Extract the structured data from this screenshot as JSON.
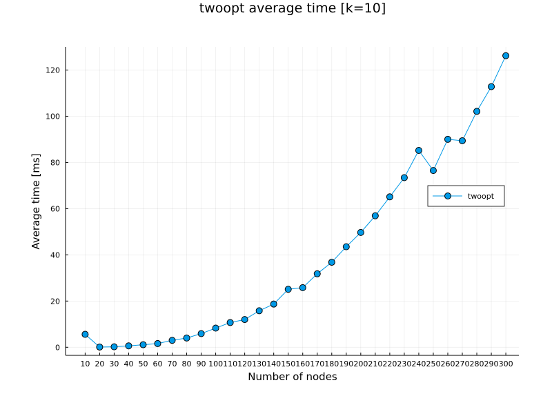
{
  "chart_data": {
    "type": "line",
    "title": "twoopt average time [k=10]",
    "xlabel": "Number of nodes",
    "ylabel": "Average time [ms]",
    "x": [
      10,
      20,
      30,
      40,
      50,
      60,
      70,
      80,
      90,
      100,
      110,
      120,
      130,
      140,
      150,
      160,
      170,
      180,
      190,
      200,
      210,
      220,
      230,
      240,
      250,
      260,
      270,
      280,
      290,
      300
    ],
    "xticks": [
      "10",
      "20",
      "30",
      "40",
      "50",
      "60",
      "70",
      "80",
      "90",
      "100",
      "110",
      "120",
      "130",
      "140",
      "150",
      "160",
      "170",
      "180",
      "190",
      "200",
      "210",
      "220",
      "230",
      "240",
      "250",
      "260",
      "270",
      "280",
      "290",
      "300"
    ],
    "yticks": [
      "0",
      "20",
      "40",
      "60",
      "80",
      "100",
      "120"
    ],
    "ytick_values": [
      0,
      20,
      40,
      60,
      80,
      100,
      120
    ],
    "xlim": [
      -3.5,
      309
    ],
    "ylim": [
      -3.5,
      130
    ],
    "grid": true,
    "legend_position": "right",
    "series": [
      {
        "name": "twoopt",
        "color": "#0099e6",
        "marker": "circle",
        "values": [
          5.6,
          0.1,
          0.2,
          0.6,
          1.1,
          1.6,
          3.0,
          4.0,
          5.9,
          8.3,
          10.7,
          12.0,
          15.8,
          18.7,
          25.1,
          25.8,
          31.8,
          36.8,
          43.5,
          49.7,
          56.9,
          65.1,
          73.4,
          85.2,
          76.5,
          90.0,
          89.4,
          102.1,
          112.8,
          126.2
        ]
      }
    ]
  }
}
